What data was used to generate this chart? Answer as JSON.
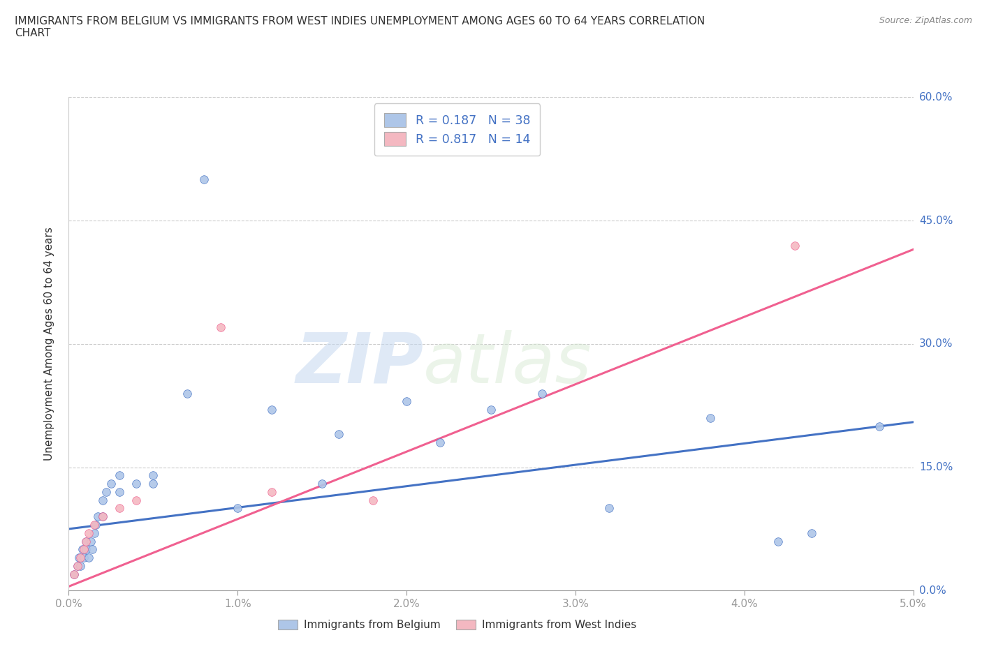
{
  "title_line1": "IMMIGRANTS FROM BELGIUM VS IMMIGRANTS FROM WEST INDIES UNEMPLOYMENT AMONG AGES 60 TO 64 YEARS CORRELATION",
  "title_line2": "CHART",
  "source": "Source: ZipAtlas.com",
  "ylabel": "Unemployment Among Ages 60 to 64 years",
  "xlim": [
    0.0,
    0.05
  ],
  "ylim": [
    0.0,
    0.6
  ],
  "yticks": [
    0.0,
    0.15,
    0.3,
    0.45,
    0.6
  ],
  "ytick_labels": [
    "0.0%",
    "15.0%",
    "30.0%",
    "45.0%",
    "60.0%"
  ],
  "xticks": [
    0.0,
    0.01,
    0.02,
    0.03,
    0.04,
    0.05
  ],
  "xtick_labels": [
    "0.0%",
    "1.0%",
    "2.0%",
    "3.0%",
    "4.0%",
    "5.0%"
  ],
  "belgium_color": "#aec6e8",
  "west_indies_color": "#f4b8c1",
  "belgium_line_color": "#4472c4",
  "west_indies_line_color": "#f06090",
  "legend_R_belgium": "0.187",
  "legend_N_belgium": "38",
  "legend_R_west_indies": "0.817",
  "legend_N_west_indies": "14",
  "watermark_zip": "ZIP",
  "watermark_atlas": "atlas",
  "belgium_scatter_x": [
    0.0003,
    0.0005,
    0.0006,
    0.0007,
    0.0008,
    0.0009,
    0.001,
    0.001,
    0.0012,
    0.0013,
    0.0014,
    0.0015,
    0.0016,
    0.0017,
    0.002,
    0.002,
    0.0022,
    0.0025,
    0.003,
    0.003,
    0.004,
    0.005,
    0.005,
    0.007,
    0.008,
    0.01,
    0.012,
    0.015,
    0.016,
    0.02,
    0.022,
    0.025,
    0.028,
    0.032,
    0.038,
    0.042,
    0.044,
    0.048
  ],
  "belgium_scatter_y": [
    0.02,
    0.03,
    0.04,
    0.03,
    0.05,
    0.04,
    0.05,
    0.06,
    0.04,
    0.06,
    0.05,
    0.07,
    0.08,
    0.09,
    0.09,
    0.11,
    0.12,
    0.13,
    0.12,
    0.14,
    0.13,
    0.13,
    0.14,
    0.24,
    0.5,
    0.1,
    0.22,
    0.13,
    0.19,
    0.23,
    0.18,
    0.22,
    0.24,
    0.1,
    0.21,
    0.06,
    0.07,
    0.2
  ],
  "west_indies_scatter_x": [
    0.0003,
    0.0005,
    0.0007,
    0.0009,
    0.001,
    0.0012,
    0.0015,
    0.002,
    0.003,
    0.004,
    0.009,
    0.012,
    0.018,
    0.043
  ],
  "west_indies_scatter_y": [
    0.02,
    0.03,
    0.04,
    0.05,
    0.06,
    0.07,
    0.08,
    0.09,
    0.1,
    0.11,
    0.32,
    0.12,
    0.11,
    0.42
  ],
  "belgium_trend_x": [
    0.0,
    0.05
  ],
  "belgium_trend_y": [
    0.075,
    0.205
  ],
  "west_indies_trend_x": [
    0.0,
    0.05
  ],
  "west_indies_trend_y": [
    0.005,
    0.415
  ]
}
